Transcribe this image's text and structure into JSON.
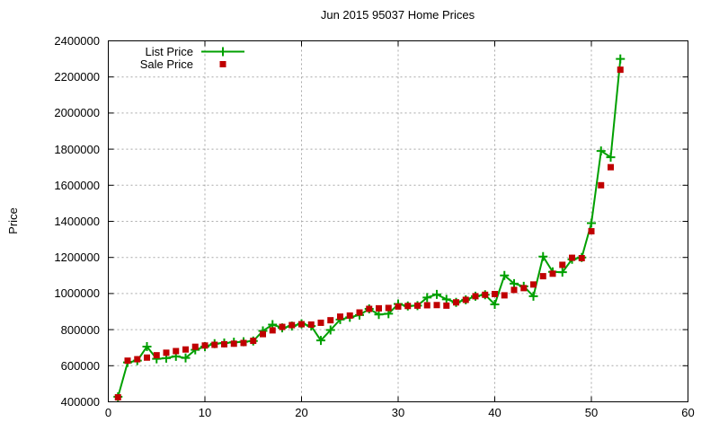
{
  "title": "Jun 2015 95037 Home Prices",
  "ylabel": "Price",
  "legend": {
    "items": [
      {
        "label": "List Price"
      },
      {
        "label": "Sale Price"
      }
    ],
    "position": "top-left"
  },
  "colors": {
    "list": "#00a000",
    "sale": "#c00000",
    "grid": "#a8a8a8",
    "frame": "#000000",
    "background": "#ffffff",
    "text": "#000000"
  },
  "chart_data": {
    "type": "line",
    "title": "Jun 2015 95037 Home Prices",
    "xlabel": "",
    "ylabel": "Price",
    "xlim": [
      0,
      60
    ],
    "ylim": [
      400000,
      2400000
    ],
    "x_ticks": [
      0,
      10,
      20,
      30,
      40,
      50,
      60
    ],
    "y_ticks": [
      400000,
      600000,
      800000,
      1000000,
      1200000,
      1400000,
      1600000,
      1800000,
      2000000,
      2200000,
      2400000
    ],
    "grid": true,
    "legend_position": "top-left",
    "x": [
      1,
      2,
      3,
      4,
      5,
      6,
      7,
      8,
      9,
      10,
      11,
      12,
      13,
      14,
      15,
      16,
      17,
      18,
      19,
      20,
      21,
      22,
      23,
      24,
      25,
      26,
      27,
      28,
      29,
      30,
      31,
      32,
      33,
      34,
      35,
      36,
      37,
      38,
      39,
      40,
      41,
      42,
      43,
      44,
      45,
      46,
      47,
      48,
      49,
      50,
      51,
      52,
      53
    ],
    "series": [
      {
        "name": "List Price",
        "color": "#00a000",
        "marker": "plus",
        "style": "linespoints",
        "values": [
          428000,
          618000,
          628000,
          706000,
          638000,
          642000,
          652000,
          643000,
          688000,
          706000,
          722000,
          726000,
          730000,
          733000,
          737000,
          793000,
          828000,
          810000,
          820000,
          832000,
          820000,
          740000,
          798000,
          856000,
          868000,
          881000,
          915000,
          884000,
          888000,
          942000,
          931000,
          933000,
          978000,
          995000,
          968000,
          951000,
          965000,
          985000,
          993000,
          940000,
          1100000,
          1055000,
          1040000,
          985000,
          1205000,
          1120000,
          1118000,
          1190000,
          1200000,
          1390000,
          1790000,
          1755000,
          2300000
        ]
      },
      {
        "name": "Sale Price",
        "color": "#c00000",
        "marker": "square",
        "style": "points",
        "values": [
          425000,
          628000,
          636000,
          645000,
          658000,
          672000,
          681000,
          690000,
          705000,
          712000,
          716000,
          719000,
          722000,
          726000,
          738000,
          775000,
          796000,
          815000,
          825000,
          830000,
          828000,
          838000,
          852000,
          872000,
          878000,
          895000,
          915000,
          918000,
          920000,
          928000,
          931000,
          933000,
          935000,
          936000,
          933000,
          951000,
          965000,
          985000,
          993000,
          997000,
          990000,
          1020000,
          1030000,
          1050000,
          1096000,
          1110000,
          1159000,
          1198000,
          1196000,
          1345000,
          1600000,
          1700000,
          2240000
        ]
      }
    ]
  }
}
